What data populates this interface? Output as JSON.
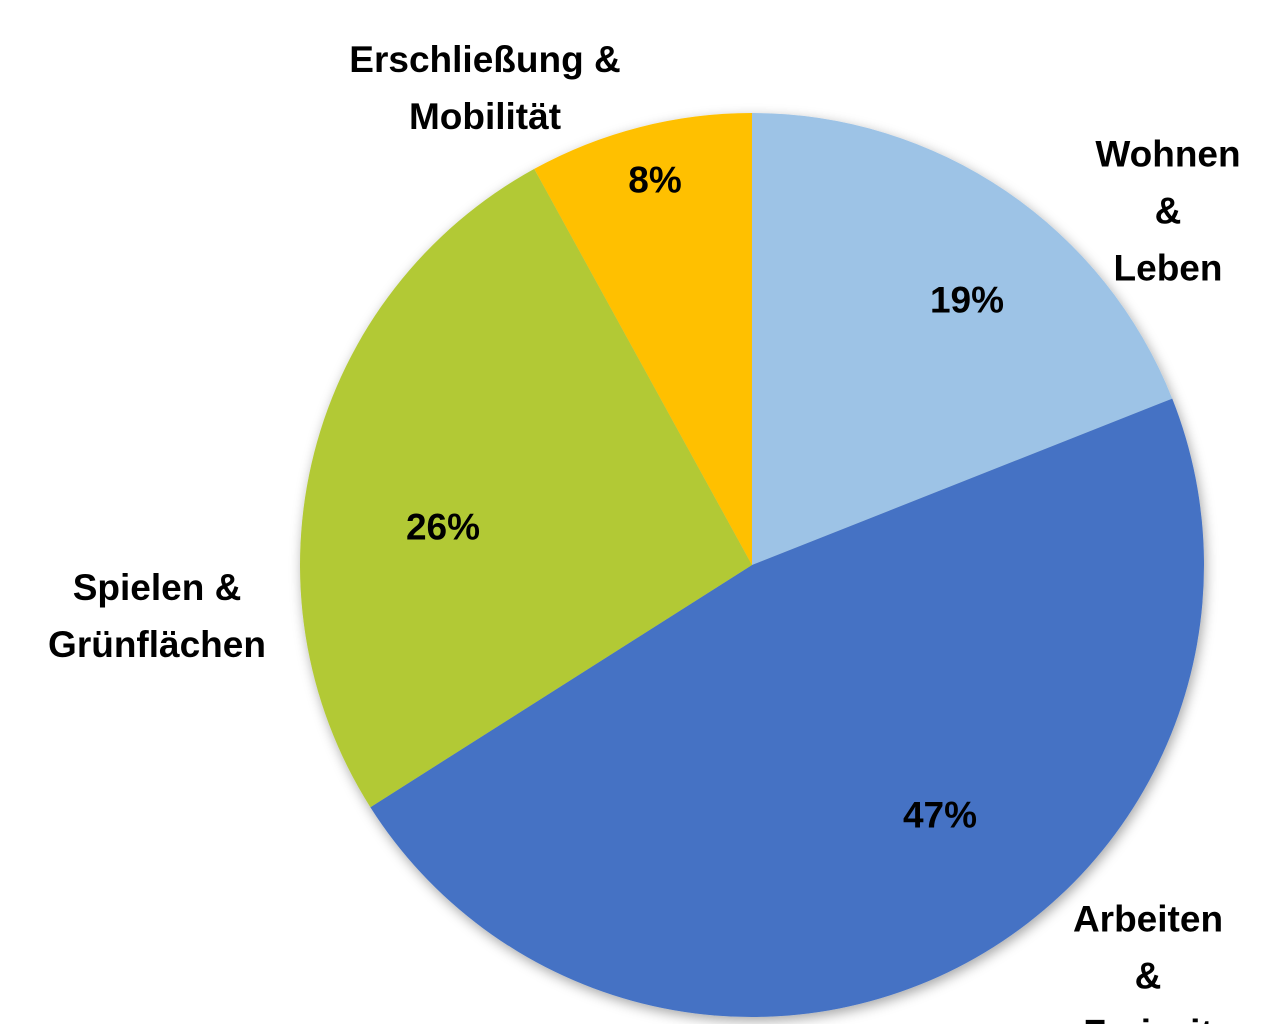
{
  "chart_data": {
    "type": "pie",
    "categories": [
      "Wohnen &\nLeben",
      "Arbeiten &\nFreizeit",
      "Spielen &\nGrünflächen",
      "Erschließung &\nMobilität"
    ],
    "values": [
      19,
      47,
      26,
      8
    ],
    "value_labels": [
      "19%",
      "47%",
      "26%",
      "8%"
    ],
    "colors": [
      "#9DC3E6",
      "#4472C4",
      "#B2C935",
      "#FFC000"
    ],
    "start_angle": 0,
    "direction": "clockwise"
  }
}
